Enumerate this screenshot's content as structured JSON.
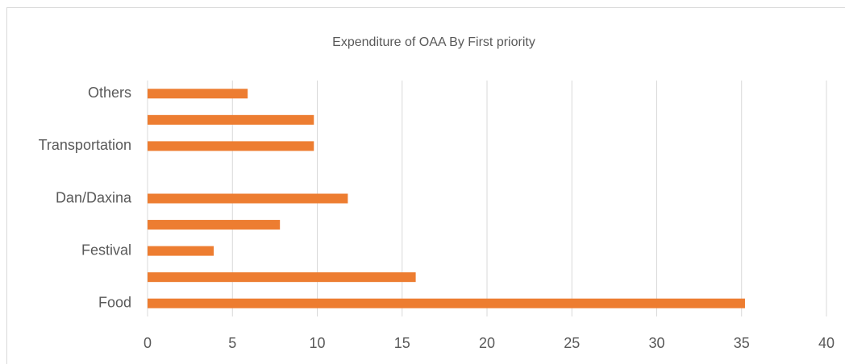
{
  "chart_data": {
    "type": "barh",
    "title": "Expenditure of OAA By First priority",
    "categories": [
      "Food",
      null,
      "Festival",
      null,
      "Dan/Daxina",
      null,
      "Transportation",
      null,
      "Others"
    ],
    "values": [
      35.2,
      15.8,
      3.9,
      7.8,
      11.8,
      0,
      9.8,
      9.8,
      5.9
    ],
    "color": "#ed7d31",
    "xlim": [
      0,
      40
    ],
    "xticks": [
      0,
      5,
      10,
      15,
      20,
      25,
      30,
      35,
      40
    ],
    "grid": true
  }
}
